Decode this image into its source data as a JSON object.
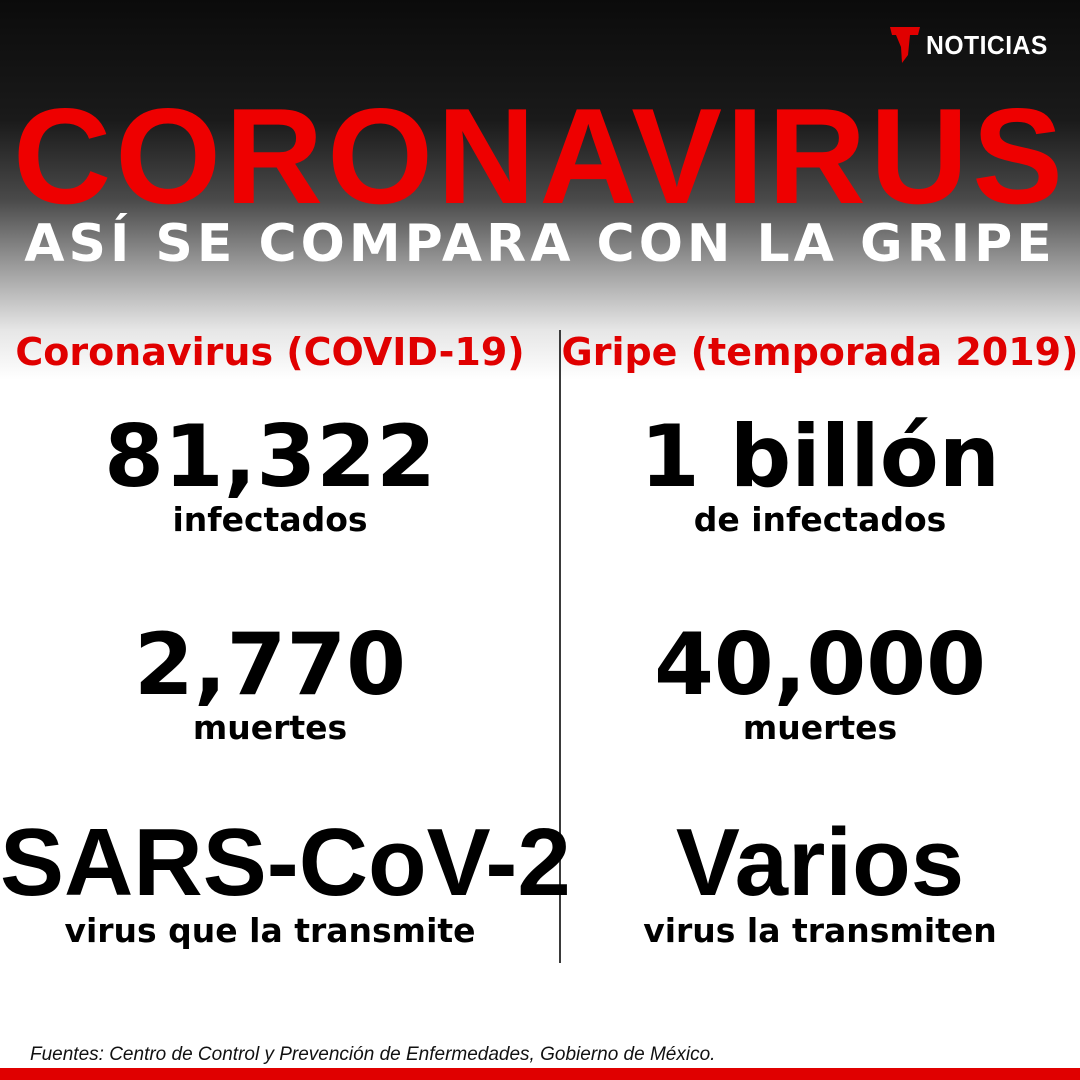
{
  "brand": {
    "logo_text": "NOTICIAS",
    "logo_icon": "telemundo-t-icon",
    "accent_color": "#ee0000"
  },
  "header": {
    "title": "CORONAVIRUS",
    "subtitle": "ASÍ SE COMPARA CON LA GRIPE"
  },
  "columns": [
    {
      "heading": "Coronavirus (COVID-19)",
      "stats": [
        {
          "value": "81,322",
          "label": "infectados"
        },
        {
          "value": "2,770",
          "label": "muertes"
        },
        {
          "value": "SARS-CoV-2",
          "label": "virus que la transmite"
        }
      ]
    },
    {
      "heading": "Gripe (temporada 2019)",
      "stats": [
        {
          "value": "1 billón",
          "label": "de infectados"
        },
        {
          "value": "40,000",
          "label": "muertes"
        },
        {
          "value": "Varios",
          "label": "virus la transmiten"
        }
      ]
    }
  ],
  "footer": {
    "source": "Fuentes: Centro de Control y Prevención de Enfermedades, Gobierno de México."
  }
}
